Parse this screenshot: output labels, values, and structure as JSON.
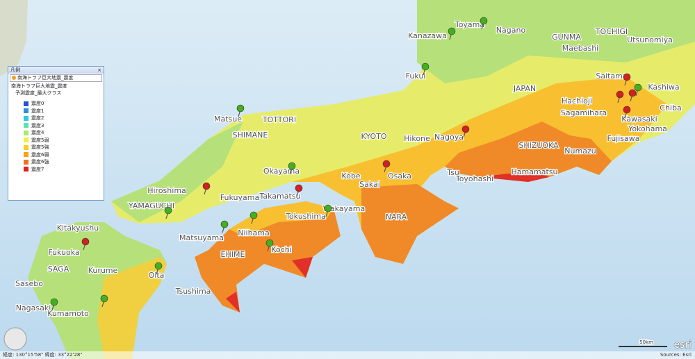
{
  "legend": {
    "title": "凡例",
    "close": "×",
    "layer_select": "南海トラフ巨大地震_震度",
    "layer": "南海トラフ巨大地震_震度",
    "sublayer": "予測震度_最大クラス",
    "classes": [
      {
        "label": "震度0",
        "color": "#2a4fd6"
      },
      {
        "label": "震度1",
        "color": "#2a8fe0"
      },
      {
        "label": "震度2",
        "color": "#30c8e0"
      },
      {
        "label": "震度3",
        "color": "#60e0b0"
      },
      {
        "label": "震度4",
        "color": "#a8e870"
      },
      {
        "label": "震度5弱",
        "color": "#f0f040"
      },
      {
        "label": "震度5強",
        "color": "#f8d020"
      },
      {
        "label": "震度6弱",
        "color": "#f8a020"
      },
      {
        "label": "震度6強",
        "color": "#f07020"
      },
      {
        "label": "震度7",
        "color": "#e02020"
      }
    ]
  },
  "map": {
    "labels": [
      "Kanazawa",
      "Toyama",
      "Nagano",
      "GUNMA",
      "TOCHIGI",
      "Maebashi",
      "Utsunomiya",
      "Fukui",
      "JAPAN",
      "Saitama",
      "Kashiwa",
      "Hachioji",
      "Chiba",
      "Sagamihara",
      "Kawasaki",
      "Yokohama",
      "Fujisawa",
      "Matsue",
      "TOTTORI",
      "SHIMANE",
      "Okayama",
      "Hiroshima",
      "KYOTO",
      "Nagoya",
      "Hikone",
      "SHIZUOKA",
      "Numazu",
      "Tsu",
      "Hamamatsu",
      "Toyohashi",
      "Kobe",
      "Sakai",
      "Osaka",
      "Takamatsu",
      "Tokushima",
      "Wakayama",
      "NARA",
      "YAMAGUCHI",
      "Fukuyama",
      "Matsuyama",
      "Niihama",
      "Kochi",
      "EHIME",
      "Kitakyushu",
      "Fukuoka",
      "SAGA",
      "Sasebo",
      "Kurume",
      "Oita",
      "Nagasaki",
      "Kumamoto",
      "Tsushima"
    ],
    "coordinates": "経度: 130°15'58\" 緯度: 33°22'28\"",
    "scale": "50km",
    "logo": "esri",
    "attribution": "Sources: Esri"
  }
}
